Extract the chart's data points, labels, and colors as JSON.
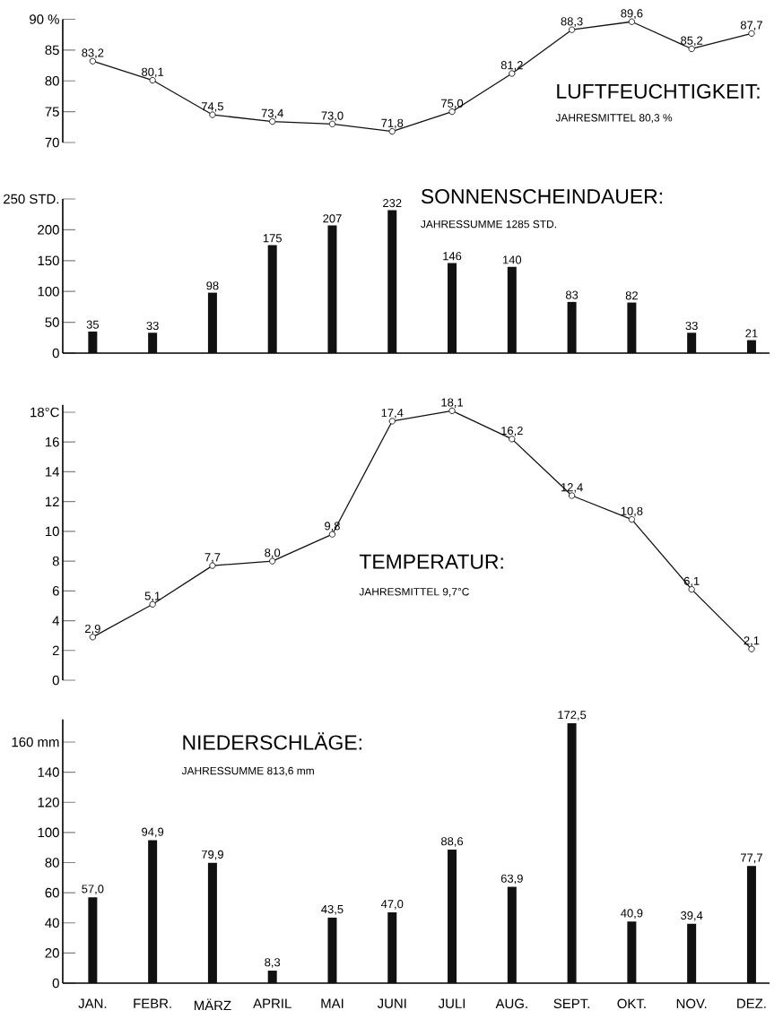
{
  "chart_data": [
    {
      "type": "line",
      "title": "LUFTFEUCHTIGKEIT:",
      "subtitle": "JAHRESMITTEL 80,3 %",
      "values": [
        83.2,
        80.1,
        74.5,
        73.4,
        73.0,
        71.8,
        75.0,
        81.2,
        88.3,
        89.6,
        85.2,
        87.7
      ],
      "value_labels": [
        "83,2",
        "80,1",
        "74,5",
        "73,4",
        "73,0",
        "71,8",
        "75,0",
        "81,2",
        "88,3",
        "89,6",
        "85,2",
        "87,7"
      ],
      "color": "#111111",
      "marker": "circle",
      "line_style": "solid",
      "ylim": [
        70,
        90
      ],
      "yticks": [
        70,
        75,
        80,
        85,
        {
          "value": 90,
          "label": "90 %"
        }
      ],
      "tick_labels": "y"
    },
    {
      "type": "bar",
      "title": "SONNENSCHEINDAUER:",
      "subtitle": "JAHRESSUMME 1285 STD.",
      "values": [
        35,
        33,
        98,
        175,
        207,
        232,
        146,
        140,
        83,
        82,
        33,
        21
      ],
      "data_labels": true,
      "color": "#111111",
      "ylim": [
        0,
        250
      ],
      "yticks": [
        0,
        50,
        100,
        150,
        200,
        {
          "value": 250,
          "label": "250 STD."
        }
      ],
      "tick_labels": "y"
    },
    {
      "type": "line",
      "title": "TEMPERATUR:",
      "subtitle": "JAHRESMITTEL 9,7°C",
      "values": [
        2.9,
        5.1,
        7.7,
        8.0,
        9.8,
        17.4,
        18.1,
        16.2,
        12.4,
        10.8,
        6.1,
        2.1
      ],
      "value_labels": [
        "2,9",
        "5,1",
        "7,7",
        "8,0",
        "9,8",
        "17,4",
        "18,1",
        "16,2",
        "12,4",
        "10,8",
        "6,1",
        "2,1"
      ],
      "color": "#111111",
      "marker": "circle",
      "line_style": "solid",
      "ylim": [
        0,
        18.5
      ],
      "yticks": [
        0,
        2,
        4,
        6,
        8,
        10,
        12,
        14,
        16,
        {
          "value": 18,
          "label": "18°C"
        }
      ],
      "tick_labels": "y"
    },
    {
      "type": "bar",
      "title": "NIEDERSCHLÄGE:",
      "subtitle": "JAHRESSUMME 813,6 mm",
      "categories": [
        "JAN.",
        "FEBR.",
        "MÄRZ",
        "APRIL",
        "MAI",
        "JUNI",
        "JULI",
        "AUG.",
        "SEPT.",
        "OKT.",
        "NOV.",
        "DEZ."
      ],
      "values": [
        57.0,
        94.9,
        79.9,
        8.3,
        43.5,
        47.0,
        88.6,
        63.9,
        172.5,
        40.9,
        39.4,
        77.7
      ],
      "value_labels": [
        "57,0",
        "94,9",
        "79,9",
        "8,3",
        "43,5",
        "47,0",
        "88,6",
        "63,9",
        "172,5",
        "40,9",
        "39,4",
        "77,7"
      ],
      "color": "#111111",
      "ylim": [
        0,
        175
      ],
      "yticks": [
        0,
        20,
        40,
        60,
        80,
        100,
        120,
        140,
        {
          "value": 160,
          "label": "160 mm"
        }
      ]
    }
  ]
}
